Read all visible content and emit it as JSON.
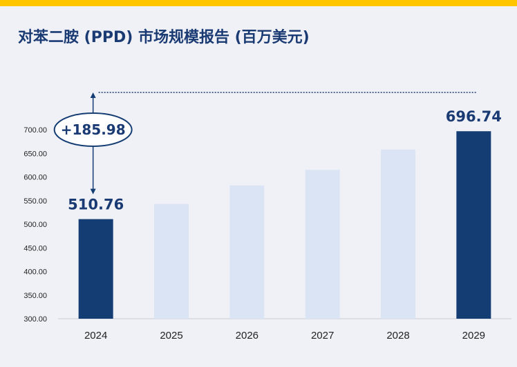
{
  "title": "对苯二胺 (PPD) 市场规模报告 (百万美元)",
  "colors": {
    "highlight": "#143d73",
    "muted": "#dbe4f4",
    "accent_bar": "#ffc600",
    "text": "#1a3a73"
  },
  "chart_data": {
    "type": "bar",
    "title": "对苯二胺 (PPD) 市场规模报告 (百万美元)",
    "categories": [
      "2024",
      "2025",
      "2026",
      "2027",
      "2028",
      "2029"
    ],
    "values": [
      510.76,
      543.0,
      582.0,
      615.0,
      658.0,
      696.74
    ],
    "highlighted": [
      "2024",
      "2029"
    ],
    "data_labels": [
      {
        "category": "2024",
        "text": "510.76"
      },
      {
        "category": "2029",
        "text": "696.74"
      }
    ],
    "annotation": {
      "text": "+185.98",
      "from": "2024",
      "to": "2029"
    },
    "ylim": [
      300,
      700
    ],
    "yticks": [
      "300.00",
      "350.00",
      "400.00",
      "450.00",
      "500.00",
      "550.00",
      "600.00",
      "650.00",
      "700.00"
    ],
    "grid": false,
    "legend": "none"
  }
}
